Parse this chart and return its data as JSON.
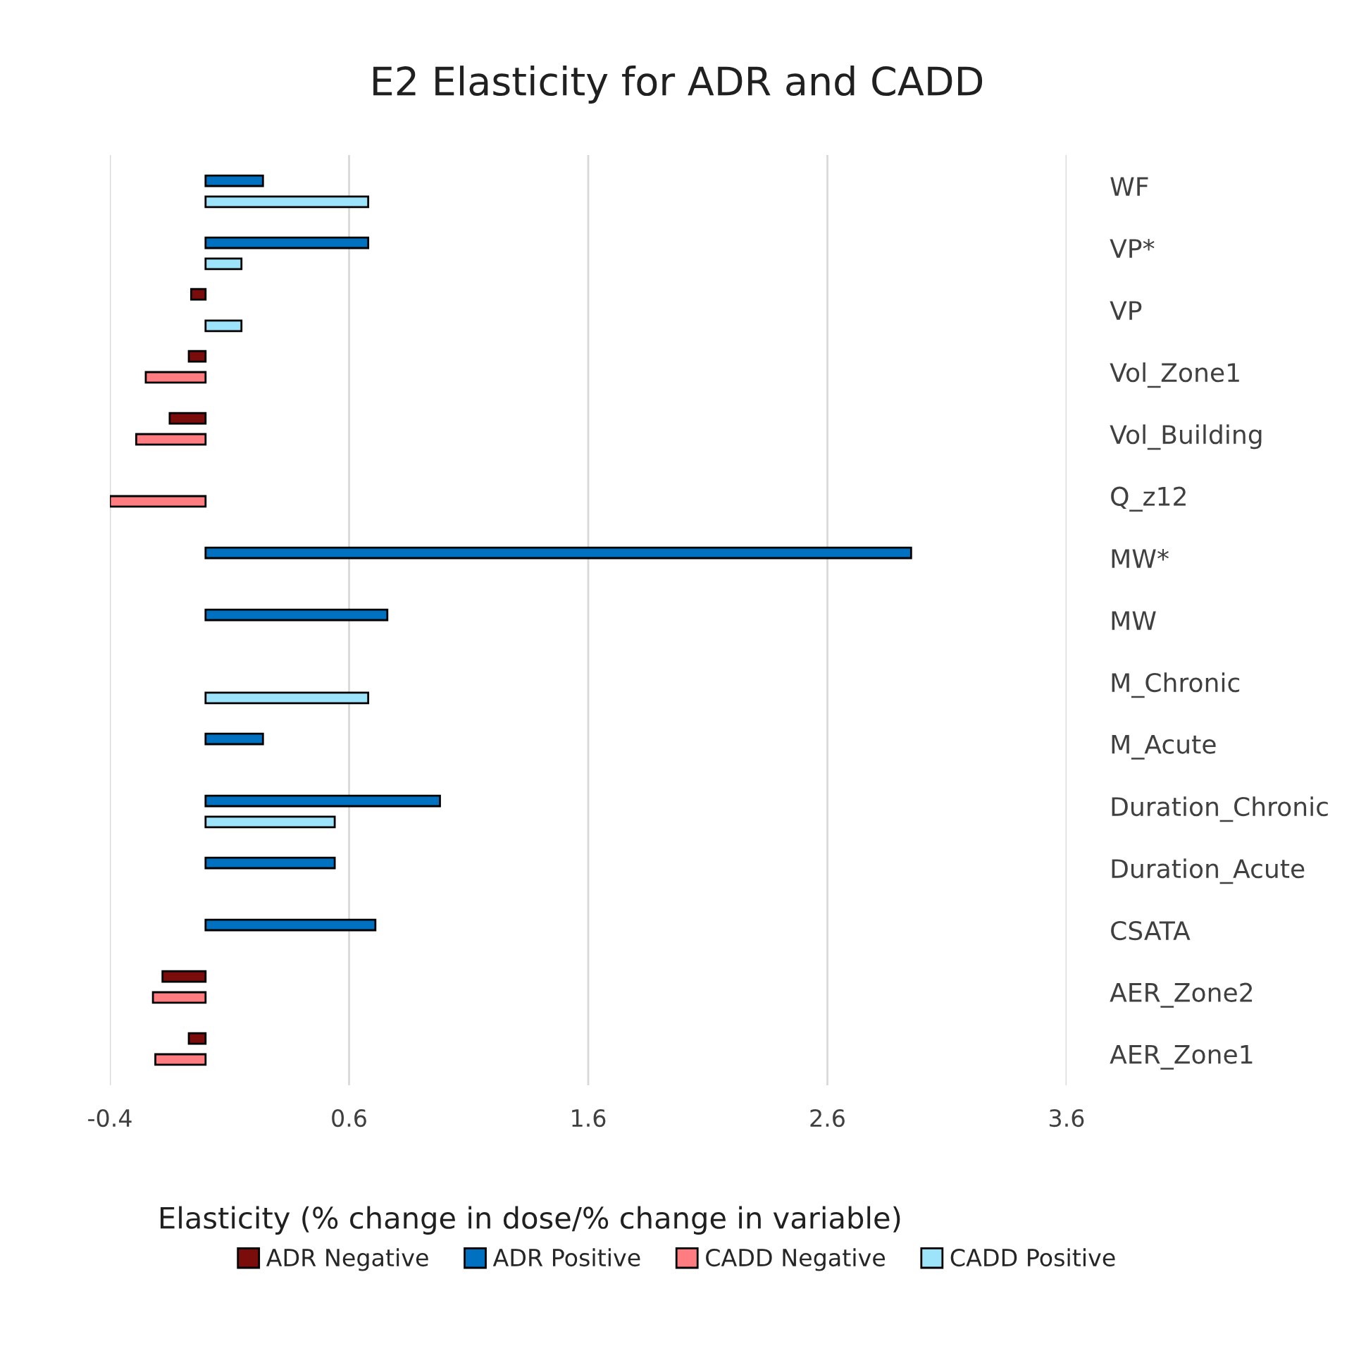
{
  "chart_data": {
    "type": "bar",
    "orientation": "horizontal",
    "title": "E2 Elasticity for ADR and CADD",
    "xlabel": "Elasticity (% change in dose/% change in variable)",
    "categories": [
      "WF",
      "VP*",
      "VP",
      "Vol_Zone1",
      "Vol_Building",
      "Q_z12",
      "MW*",
      "MW",
      "M_Chronic",
      "M_Acute",
      "Duration_Chronic",
      "Duration_Acute",
      "CSATA",
      "AER_Zone2",
      "AER_Zone1"
    ],
    "series": [
      {
        "name": "ADR Negative",
        "color": "#7b0c0c",
        "values": [
          null,
          null,
          -0.06,
          -0.07,
          -0.15,
          null,
          null,
          null,
          null,
          null,
          null,
          null,
          null,
          -0.18,
          -0.07
        ]
      },
      {
        "name": "ADR Positive",
        "color": "#0070c0",
        "values": [
          0.24,
          0.68,
          null,
          null,
          null,
          null,
          2.95,
          0.76,
          null,
          0.24,
          0.98,
          0.54,
          0.71,
          null,
          null
        ]
      },
      {
        "name": "CADD Negative",
        "color": "#ff7c80",
        "values": [
          null,
          null,
          null,
          -0.25,
          -0.29,
          -0.4,
          null,
          null,
          null,
          null,
          null,
          null,
          null,
          -0.22,
          -0.21
        ]
      },
      {
        "name": "CADD Positive",
        "color": "#9de3fa",
        "values": [
          0.68,
          0.15,
          0.15,
          null,
          null,
          null,
          null,
          null,
          0.68,
          null,
          0.54,
          null,
          null,
          null,
          null
        ]
      }
    ],
    "xlim": [
      -0.4,
      3.6
    ],
    "xticks": [
      -0.4,
      0.6,
      1.6,
      2.6,
      3.6
    ],
    "grid": "x",
    "legend": "bottom"
  }
}
